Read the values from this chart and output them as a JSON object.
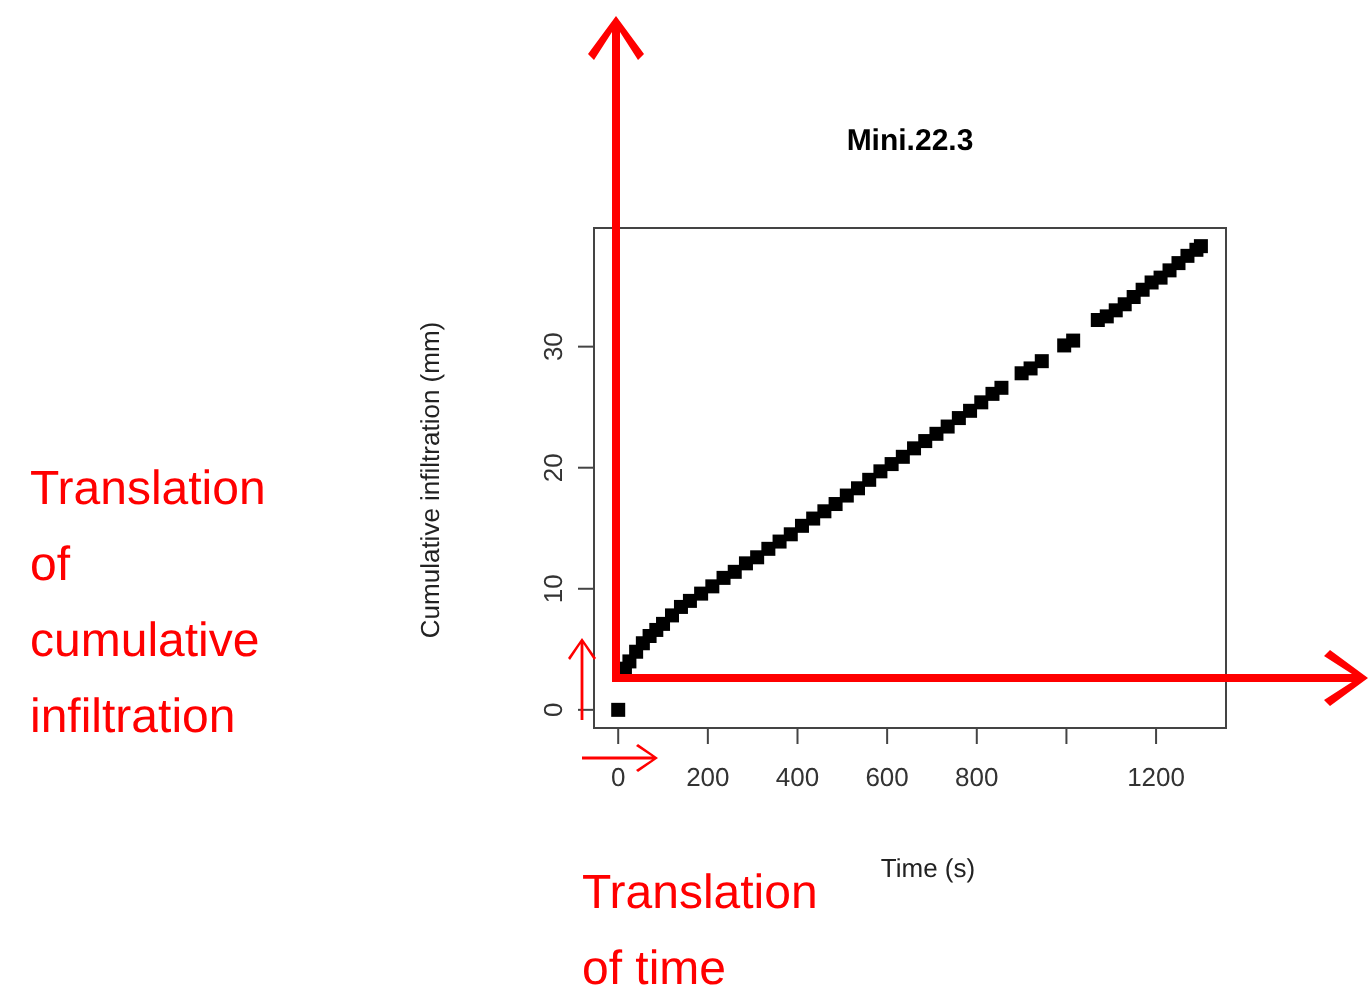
{
  "chart_data": {
    "type": "scatter",
    "title": "Mini.22.3",
    "xlabel": "Time (s)",
    "ylabel": "Cumulative infiltration (mm)",
    "x": [
      0,
      5,
      15,
      25,
      40,
      55,
      70,
      85,
      100,
      120,
      140,
      160,
      185,
      210,
      235,
      260,
      285,
      310,
      335,
      360,
      385,
      410,
      435,
      460,
      485,
      510,
      535,
      560,
      585,
      610,
      635,
      660,
      685,
      710,
      735,
      760,
      785,
      810,
      835,
      855,
      900,
      920,
      945,
      995,
      1015,
      1070,
      1090,
      1110,
      1130,
      1150,
      1170,
      1190,
      1210,
      1230,
      1250,
      1270,
      1290,
      1300
    ],
    "series": [
      {
        "color": "#000000",
        "values": [
          0,
          null,
          3.4,
          4.0,
          4.8,
          5.5,
          6.1,
          6.6,
          7.1,
          7.8,
          8.5,
          9.0,
          9.6,
          10.2,
          10.9,
          11.4,
          12.1,
          12.6,
          13.3,
          13.9,
          14.5,
          15.2,
          15.8,
          16.4,
          17.0,
          17.7,
          18.3,
          19.0,
          19.7,
          20.3,
          20.9,
          21.6,
          22.2,
          22.8,
          23.4,
          24.1,
          24.7,
          25.4,
          26.1,
          26.6,
          27.8,
          28.2,
          28.8,
          30.1,
          30.5,
          32.2,
          32.5,
          33.0,
          33.5,
          34.1,
          34.7,
          35.3,
          35.7,
          36.3,
          36.9,
          37.5,
          38.0,
          38.3
        ]
      }
    ],
    "xlim": [
      -54,
      1356
    ],
    "ylim": [
      -1.5,
      39.8
    ],
    "xticks": [
      0,
      200,
      400,
      600,
      800,
      {
        "value": 1000,
        "label": null
      },
      1200
    ],
    "yticks": [
      0,
      10,
      20,
      30
    ],
    "marker": "square",
    "grid": false,
    "annotations": [
      "Translation of cumulative infiltration",
      "Translation of time"
    ]
  }
}
